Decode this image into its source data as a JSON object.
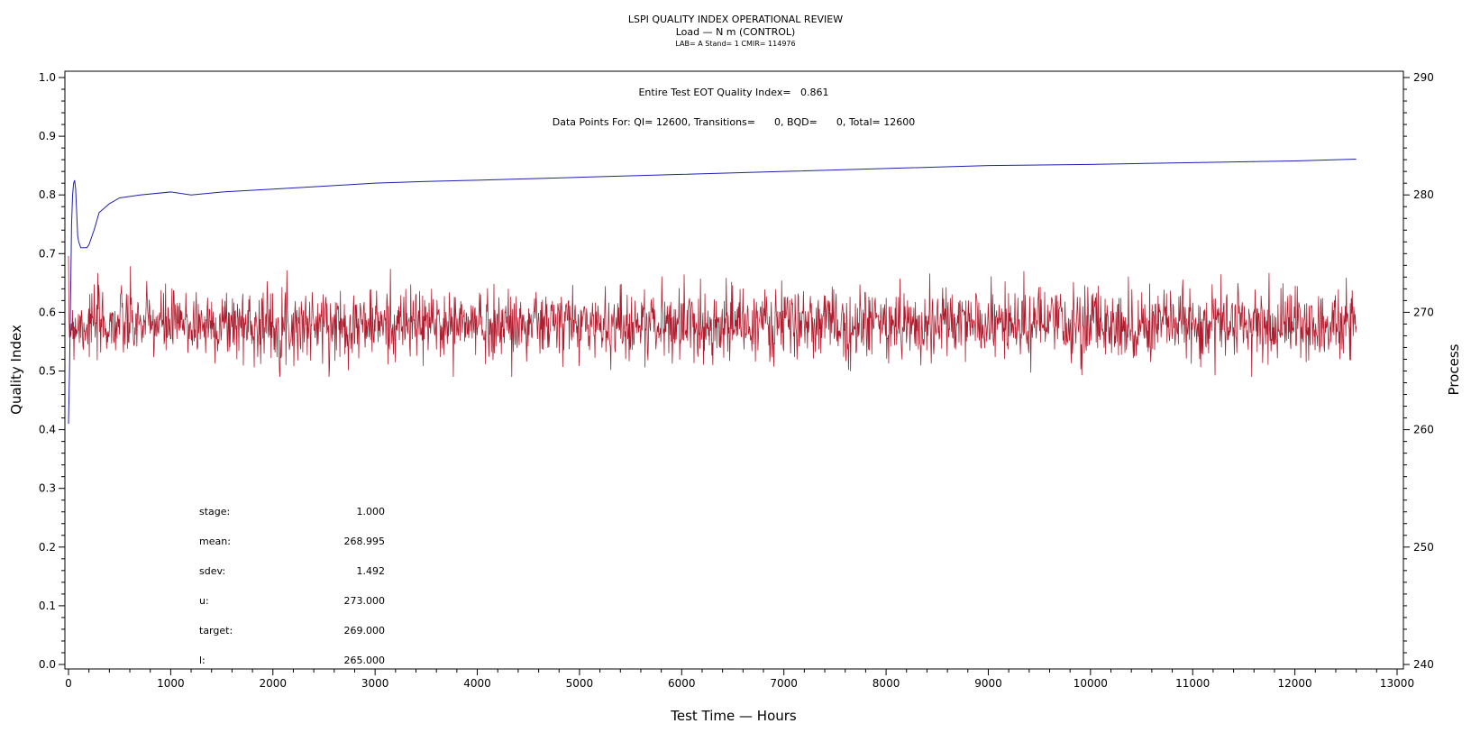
{
  "header": {
    "title": "LSPI QUALITY INDEX OPERATIONAL REVIEW",
    "subtitle": "Load — N m (CONTROL)",
    "info": "LAB= A Stand= 1 CMIR= 114976"
  },
  "annotations": {
    "eot": "Entire Test EOT Quality Index=   0.861",
    "points": "Data Points For: QI= 12600, Transitions=      0, BQD=      0, Total= 12600"
  },
  "stats": [
    {
      "label": "stage:",
      "value": "1.000"
    },
    {
      "label": "mean:",
      "value": "268.995"
    },
    {
      "label": "sdev:",
      "value": "1.492"
    },
    {
      "label": "u:",
      "value": "273.000"
    },
    {
      "label": "target:",
      "value": "269.000"
    },
    {
      "label": "l:",
      "value": "265.000"
    }
  ],
  "chart_data": {
    "type": "line",
    "xlabel": "Test Time — Hours",
    "ylabel": "Quality Index",
    "y2label": "Process",
    "xlim": [
      0,
      13000
    ],
    "ylim": [
      0.0,
      1.0
    ],
    "y2lim": [
      240,
      290
    ],
    "xticks": [
      "0",
      "1000",
      "2000",
      "3000",
      "4000",
      "5000",
      "6000",
      "7000",
      "8000",
      "9000",
      "10000",
      "11000",
      "12000",
      "13000"
    ],
    "yticks": [
      "0.0",
      "0.1",
      "0.2",
      "0.3",
      "0.4",
      "0.5",
      "0.6",
      "0.7",
      "0.8",
      "0.9",
      "1.0"
    ],
    "y2ticks": [
      "240",
      "250",
      "260",
      "270",
      "280",
      "290"
    ],
    "series": [
      {
        "axis": "left",
        "color": "#1f1fb4",
        "x": [
          0,
          10,
          20,
          30,
          40,
          50,
          60,
          70,
          80,
          90,
          100,
          120,
          150,
          180,
          200,
          250,
          300,
          400,
          500,
          700,
          1000,
          1200,
          1500,
          2000,
          2500,
          3000,
          3500,
          4000,
          5000,
          6000,
          7000,
          8000,
          9000,
          10000,
          11000,
          12000,
          12600
        ],
        "y": [
          0.41,
          0.5,
          0.62,
          0.75,
          0.8,
          0.82,
          0.825,
          0.81,
          0.77,
          0.73,
          0.72,
          0.71,
          0.71,
          0.71,
          0.715,
          0.74,
          0.77,
          0.785,
          0.795,
          0.8,
          0.805,
          0.8,
          0.805,
          0.81,
          0.815,
          0.82,
          0.823,
          0.825,
          0.83,
          0.835,
          0.84,
          0.845,
          0.85,
          0.852,
          0.855,
          0.858,
          0.861
        ]
      },
      {
        "axis": "right",
        "color": "#b01c2e",
        "x_start": 0,
        "x_end": 12600,
        "mean": 268.995,
        "sdev": 1.492,
        "min": 264.5,
        "max": 275.5
      }
    ]
  }
}
